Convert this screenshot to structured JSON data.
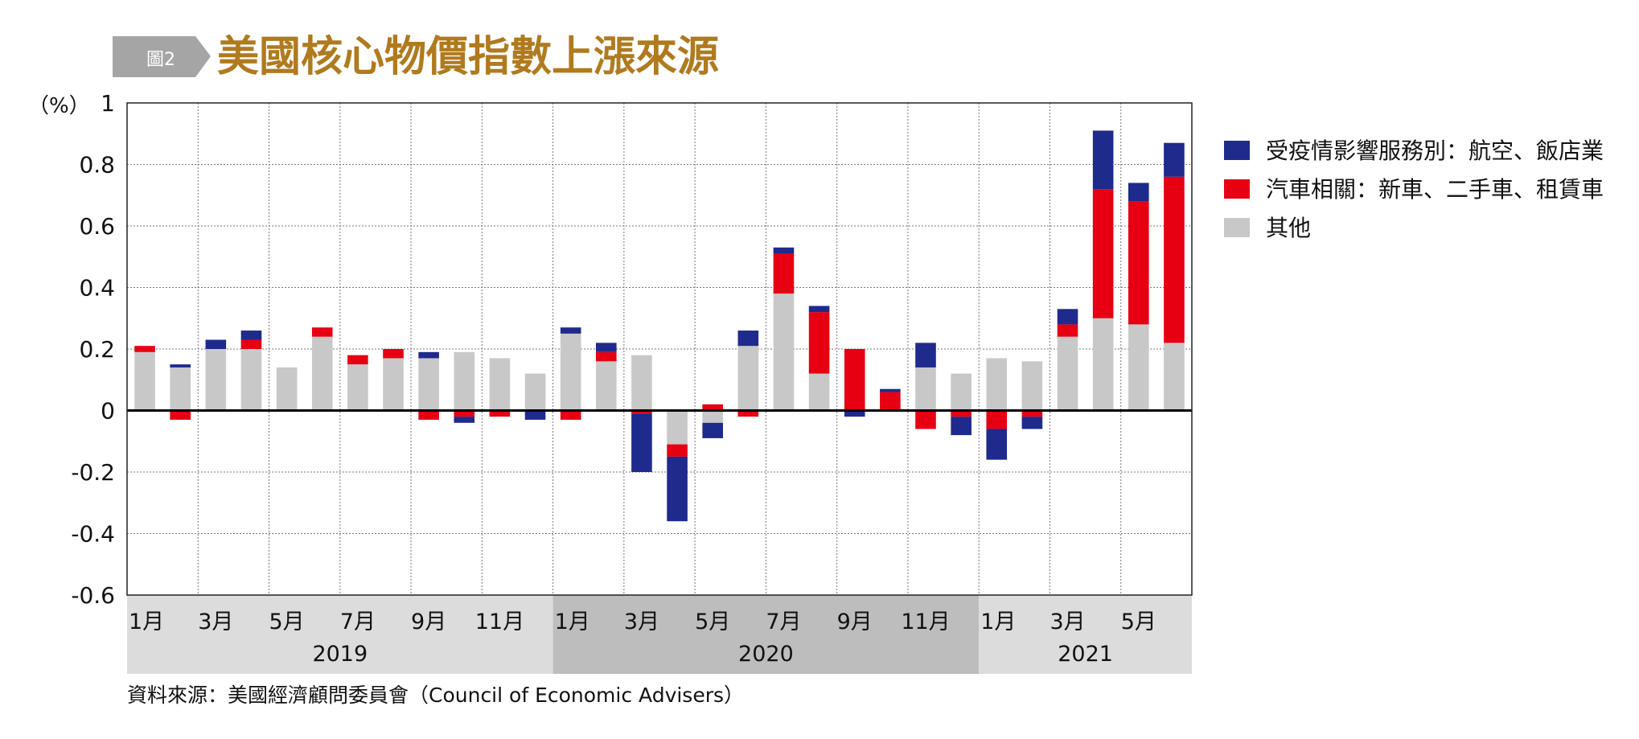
{
  "header": {
    "figure_tag": "圖2",
    "title": "美國核心物價指數上漲來源"
  },
  "source_note": "資料來源：美國經濟顧問委員會（Council of Economic Advisers）",
  "colors": {
    "pandemic": "#1e2a8c",
    "auto": "#e60012",
    "other": "#c8c8c8",
    "title": "#b07a1e",
    "tag_bg": "#a5a5a5",
    "year_band_light": "#dcdcdc",
    "year_band_dark": "#bdbdbd"
  },
  "chart_data": {
    "type": "bar",
    "stacked": true,
    "y_unit_label": "（%）",
    "ylim": [
      -0.6,
      1
    ],
    "yticks": [
      1,
      0.8,
      0.6,
      0.4,
      0.2,
      0,
      -0.2,
      -0.4,
      -0.6
    ],
    "ytick_labels": [
      "1",
      "0.8",
      "0.6",
      "0.4",
      "0.2",
      "0",
      "-0.2",
      "-0.4",
      "-0.6"
    ],
    "grid": true,
    "legend_position": "right",
    "months": [
      "2019-01",
      "2019-02",
      "2019-03",
      "2019-04",
      "2019-05",
      "2019-06",
      "2019-07",
      "2019-08",
      "2019-09",
      "2019-10",
      "2019-11",
      "2019-12",
      "2020-01",
      "2020-02",
      "2020-03",
      "2020-04",
      "2020-05",
      "2020-06",
      "2020-07",
      "2020-08",
      "2020-09",
      "2020-10",
      "2020-11",
      "2020-12",
      "2021-01",
      "2021-02",
      "2021-03",
      "2021-04",
      "2021-05",
      "2021-06"
    ],
    "month_labels": [
      {
        "index": 0,
        "label": "1月"
      },
      {
        "index": 2,
        "label": "3月"
      },
      {
        "index": 4,
        "label": "5月"
      },
      {
        "index": 6,
        "label": "7月"
      },
      {
        "index": 8,
        "label": "9月"
      },
      {
        "index": 10,
        "label": "11月"
      },
      {
        "index": 12,
        "label": "1月"
      },
      {
        "index": 14,
        "label": "3月"
      },
      {
        "index": 16,
        "label": "5月"
      },
      {
        "index": 18,
        "label": "7月"
      },
      {
        "index": 20,
        "label": "9月"
      },
      {
        "index": 22,
        "label": "11月"
      },
      {
        "index": 24,
        "label": "1月"
      },
      {
        "index": 26,
        "label": "3月"
      },
      {
        "index": 28,
        "label": "5月"
      }
    ],
    "years": [
      {
        "label": "2019",
        "start": 0,
        "end": 11
      },
      {
        "label": "2020",
        "start": 12,
        "end": 23
      },
      {
        "label": "2021",
        "start": 24,
        "end": 29
      }
    ],
    "series": [
      {
        "name": "其他",
        "color_key": "other",
        "values": [
          0.19,
          0.14,
          0.2,
          0.2,
          0.14,
          0.24,
          0.15,
          0.17,
          0.17,
          0.19,
          0.17,
          0.12,
          0.25,
          0.16,
          0.18,
          -0.11,
          -0.04,
          0.21,
          0.38,
          0.12,
          0.0,
          0.0,
          0.14,
          0.12,
          0.17,
          0.16,
          0.24,
          0.3,
          0.28,
          0.22
        ]
      },
      {
        "name": "汽車相關：新車、二手車、租賃車",
        "color_key": "auto",
        "values": [
          0.02,
          -0.03,
          0.0,
          0.03,
          0.0,
          0.03,
          0.03,
          0.03,
          -0.03,
          -0.02,
          -0.02,
          0.0,
          -0.03,
          0.03,
          -0.01,
          -0.04,
          0.02,
          -0.02,
          0.13,
          0.2,
          0.2,
          0.06,
          -0.06,
          -0.02,
          -0.06,
          -0.02,
          0.04,
          0.42,
          0.4,
          0.54
        ]
      },
      {
        "name": "受疫情影響服務別：航空、飯店業",
        "color_key": "pandemic",
        "values": [
          0.0,
          0.01,
          0.03,
          0.03,
          0.0,
          0.0,
          0.0,
          0.0,
          0.02,
          -0.02,
          0.0,
          -0.03,
          0.02,
          0.03,
          -0.19,
          -0.21,
          -0.05,
          0.05,
          0.02,
          0.02,
          -0.02,
          0.01,
          0.08,
          -0.06,
          -0.1,
          -0.04,
          0.05,
          0.19,
          0.06,
          0.11
        ]
      }
    ],
    "legend_order": [
      2,
      1,
      0
    ]
  }
}
